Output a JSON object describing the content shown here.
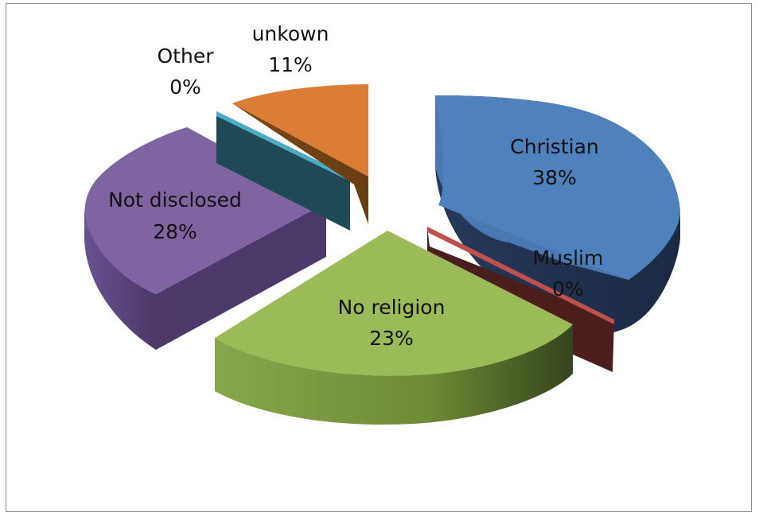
{
  "chart_data": {
    "type": "pie",
    "title": "",
    "style": "3d-exploded",
    "slices": [
      {
        "label": "Christian",
        "value_label": "38%",
        "value": 38,
        "color": "#4f81bd"
      },
      {
        "label": "Muslim",
        "value_label": "0%",
        "value": 0,
        "color": "#c0504d"
      },
      {
        "label": "No religion",
        "value_label": "23%",
        "value": 23,
        "color": "#9bbb59"
      },
      {
        "label": "Not disclosed",
        "value_label": "28%",
        "value": 28,
        "color": "#8064a2"
      },
      {
        "label": "Other",
        "value_label": "0%",
        "value": 0,
        "color": "#4bacc6"
      },
      {
        "label": "unkown",
        "value_label": "11%",
        "value": 11,
        "color": "#f79646"
      }
    ]
  }
}
